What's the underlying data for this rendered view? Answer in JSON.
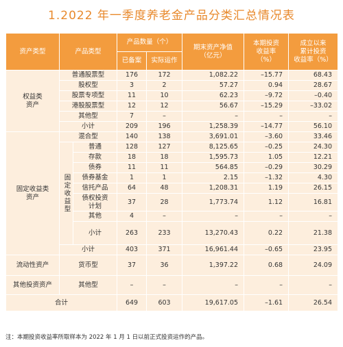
{
  "title": "1.2022 年一季度养老金产品分类汇总情况表",
  "table": {
    "headers": {
      "asset_type": "资产类型",
      "product_type": "产品类型",
      "count": "产品数量（个）",
      "filed": "已备案",
      "running": "实际运作",
      "nav": "期末资产净值\n（亿元）",
      "period_return": "本期投资\n收益率\n（%）",
      "cumulative_return": "成立以来\n累计投资\n收益率（%）"
    },
    "groups": [
      {
        "label": "权益类\n资产",
        "rows": [
          {
            "name": "普通股票型",
            "cells": [
              "176",
              "172",
              "1,082.22",
              "–15.77",
              "68.43"
            ]
          },
          {
            "name": "股权型",
            "cells": [
              "3",
              "2",
              "57.27",
              "0.94",
              "28.67"
            ]
          },
          {
            "name": "股票专项型",
            "cells": [
              "11",
              "10",
              "62.23",
              "–9.72",
              "–0.40"
            ]
          },
          {
            "name": "港股股票型",
            "cells": [
              "12",
              "12",
              "56.67",
              "–15.29",
              "–33.02"
            ]
          },
          {
            "name": "其他型",
            "cells": [
              "7",
              "–",
              "–",
              "–",
              "–"
            ]
          },
          {
            "name": "小计",
            "cells": [
              "209",
              "196",
              "1,258.39",
              "–14.77",
              "56.10"
            ]
          }
        ]
      },
      {
        "label": "固定收益类\n资产",
        "rows": [
          {
            "name": "混合型",
            "cells": [
              "140",
              "138",
              "3,691.01",
              "–3.60",
              "33.46"
            ]
          },
          {
            "subgroup": "固定收益型",
            "rows": [
              {
                "name": "普通",
                "cells": [
                  "128",
                  "127",
                  "8,125.65",
                  "–0.25",
                  "24.30"
                ]
              },
              {
                "name": "存款",
                "cells": [
                  "18",
                  "18",
                  "1,595.73",
                  "1.05",
                  "12.21"
                ]
              },
              {
                "name": "债券",
                "cells": [
                  "11",
                  "11",
                  "564.85",
                  "–0.29",
                  "30.29"
                ]
              },
              {
                "name": "债券基金",
                "cells": [
                  "1",
                  "1",
                  "2.15",
                  "–1.32",
                  "4.30"
                ]
              },
              {
                "name": "信托产品",
                "cells": [
                  "64",
                  "48",
                  "1,208.31",
                  "1.19",
                  "26.15"
                ]
              },
              {
                "name": "债权投资\n计划",
                "cells": [
                  "37",
                  "28",
                  "1,773.74",
                  "1.12",
                  "16.81"
                ]
              },
              {
                "name": "其他",
                "cells": [
                  "4",
                  "–",
                  "–",
                  "–",
                  "–"
                ]
              },
              {
                "name": "小计",
                "cells": [
                  "263",
                  "233",
                  "13,270.43",
                  "0.22",
                  "21.38"
                ]
              }
            ]
          },
          {
            "name": "小计",
            "cells": [
              "403",
              "371",
              "16,961.44",
              "–0.65",
              "23.95"
            ]
          }
        ]
      },
      {
        "label": "流动性资产",
        "rows": [
          {
            "name": "货币型",
            "cells": [
              "37",
              "36",
              "1,397.22",
              "0.68",
              "24.09"
            ]
          }
        ]
      },
      {
        "label": "其他投资资产",
        "rows": [
          {
            "name": "其他型",
            "cells": [
              "–",
              "–",
              "–",
              "–",
              "–"
            ]
          }
        ]
      }
    ],
    "total": {
      "label": "合计",
      "cells": [
        "649",
        "603",
        "19,617.05",
        "–1.61",
        "26.54"
      ]
    }
  },
  "footnote": "注：本期投资收益率所取样本为 2022 年 1 月 1 日以前正式投资运作的产品。"
}
